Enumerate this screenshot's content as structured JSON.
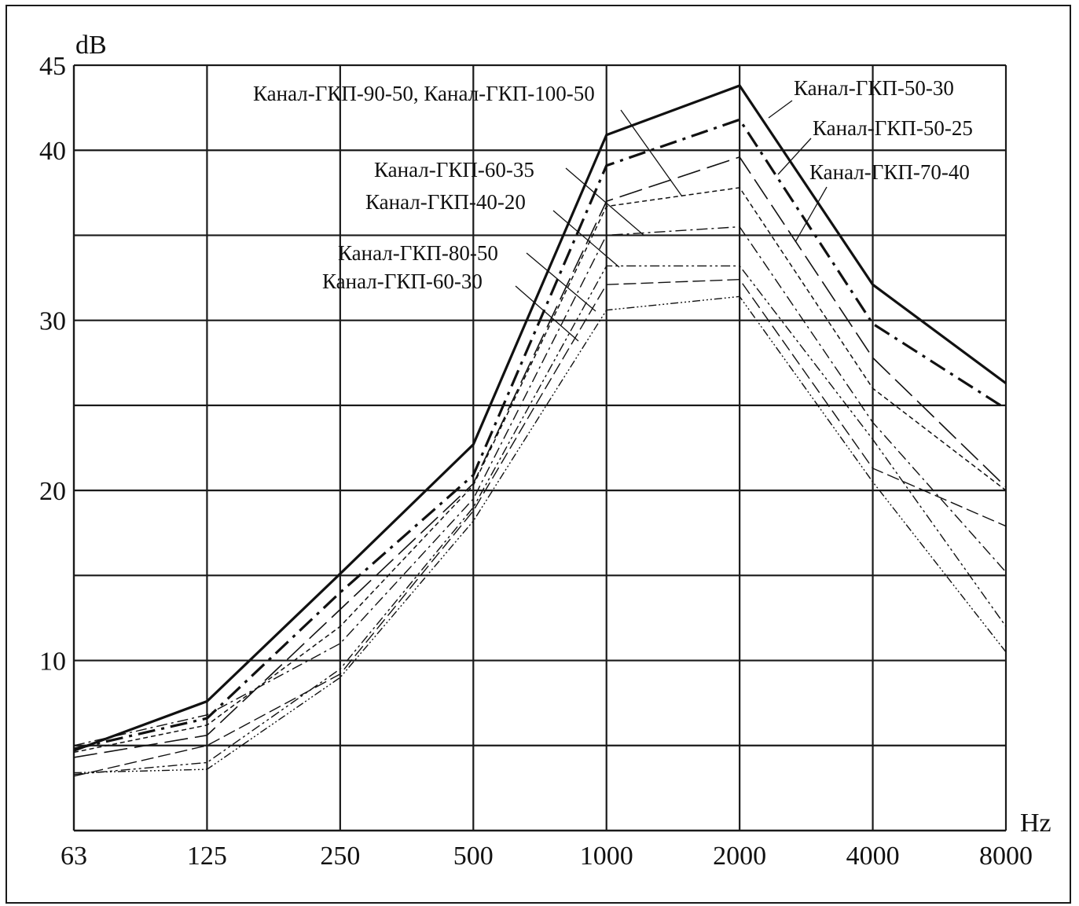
{
  "chart_data": {
    "type": "line",
    "ylabel": "dB",
    "xlabel": "Hz",
    "ylim": [
      0,
      45
    ],
    "yticks": [
      10,
      20,
      30,
      40,
      45
    ],
    "y_gridlines": [
      5,
      10,
      15,
      20,
      25,
      30,
      35,
      40,
      45
    ],
    "categories": [
      "63",
      "125",
      "250",
      "500",
      "1000",
      "2000",
      "4000",
      "8000"
    ],
    "grid": true,
    "series": [
      {
        "name": "Канал-ГКП-50-30",
        "values": [
          4.7,
          7.6,
          15.1,
          22.7,
          40.9,
          43.8,
          32.1,
          26.3
        ],
        "dash": "",
        "width": 3.2
      },
      {
        "name": "Канал-ГКП-50-25",
        "values": [
          4.8,
          6.6,
          14.0,
          20.9,
          39.1,
          41.8,
          29.8,
          24.8
        ],
        "dash": "22 8 4 8",
        "width": 3.2
      },
      {
        "name": "Канал-ГКП-70-40",
        "values": [
          4.3,
          5.6,
          13.0,
          20.4,
          37.0,
          39.6,
          27.8,
          20.2
        ],
        "dash": "30 9",
        "width": 1.6
      },
      {
        "name": "Канал-ГКП-90-50, Канал-ГКП-100-50",
        "values": [
          4.6,
          6.2,
          12.0,
          20.3,
          36.7,
          37.8,
          26.0,
          20.0
        ],
        "dash": "6 4",
        "width": 1.5
      },
      {
        "name": "Канал-ГКП-60-35",
        "values": [
          5.0,
          6.8,
          11.0,
          19.5,
          35.0,
          35.5,
          24.0,
          15.2
        ],
        "dash": "14 5 3 5",
        "width": 1.4
      },
      {
        "name": "Канал-ГКП-40-20",
        "values": [
          3.3,
          4.0,
          9.5,
          19.0,
          33.2,
          33.2,
          23.0,
          12.0
        ],
        "dash": "12 4 3 4 3 4",
        "width": 1.4
      },
      {
        "name": "Канал-ГКП-80-50",
        "values": [
          3.2,
          5.0,
          9.2,
          18.8,
          32.1,
          32.4,
          21.3,
          17.9
        ],
        "dash": "16 6",
        "width": 1.4
      },
      {
        "name": "Канал-ГКП-60-30",
        "values": [
          3.4,
          3.6,
          9.0,
          18.2,
          30.6,
          31.4,
          20.5,
          10.5
        ],
        "dash": "10 3 2 3 2 3 2 3",
        "width": 1.4
      }
    ],
    "annotations": [
      {
        "text": "Канал-ГКП-90-50, Канал-ГКП-100-50",
        "series": 3
      },
      {
        "text": "Канал-ГКП-50-30",
        "series": 0
      },
      {
        "text": "Канал-ГКП-50-25",
        "series": 1
      },
      {
        "text": "Канал-ГКП-70-40",
        "series": 2
      },
      {
        "text": "Канал-ГКП-60-35",
        "series": 4
      },
      {
        "text": "Канал-ГКП-40-20",
        "series": 5
      },
      {
        "text": "Канал-ГКП-80-50",
        "series": 6
      },
      {
        "text": "Канал-ГКП-60-30",
        "series": 7
      }
    ],
    "colors": {
      "line": "#111111",
      "grid": "#1a1a1a",
      "background": "#ffffff"
    }
  }
}
